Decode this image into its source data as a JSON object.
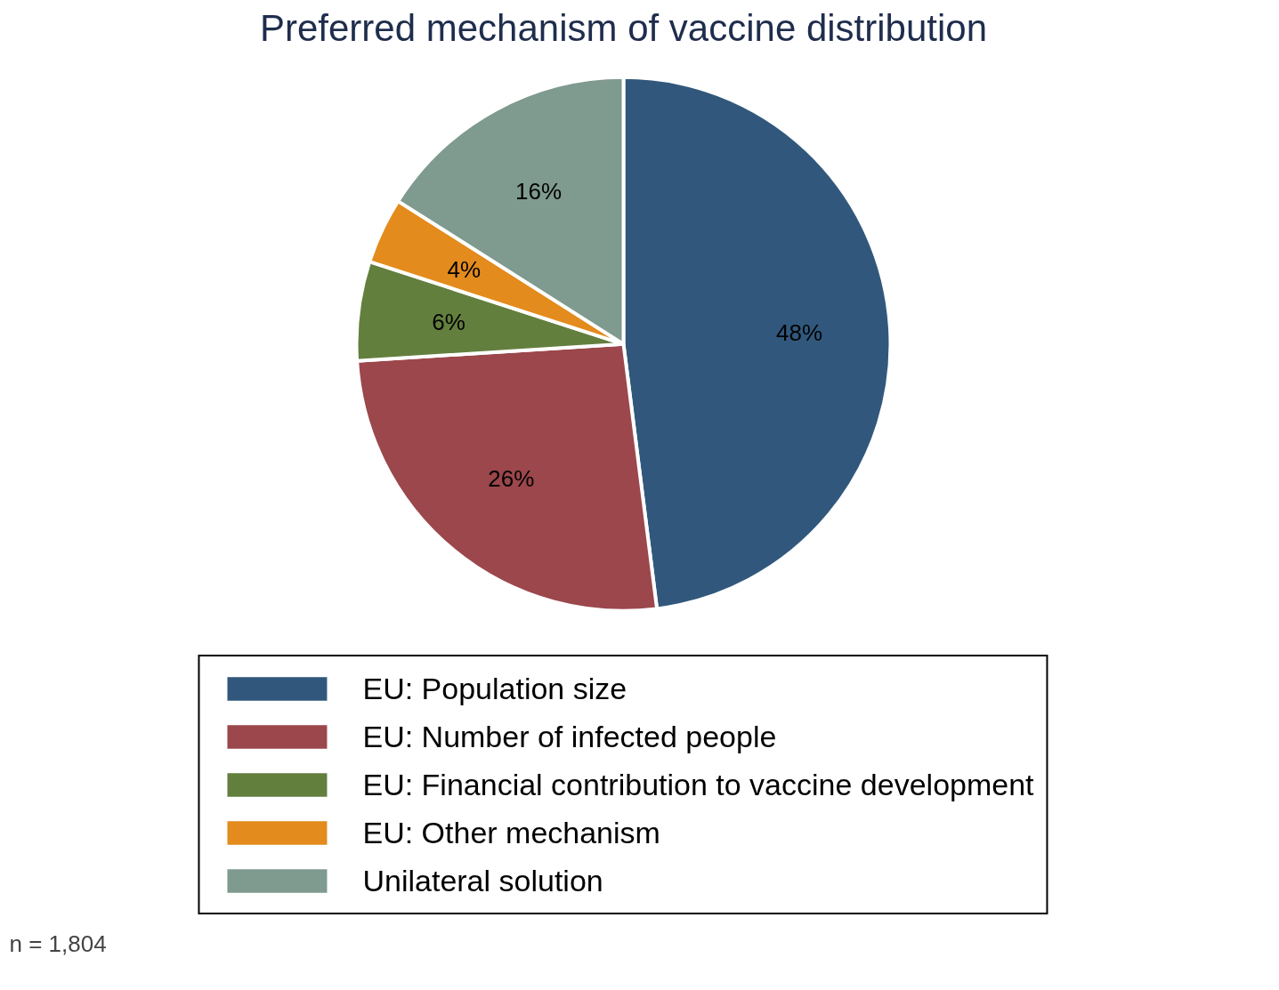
{
  "chart_data": {
    "type": "pie",
    "title": "Preferred mechanism of vaccine distribution",
    "categories": [
      "EU: Population size",
      "EU: Number of infected people",
      "EU: Financial contribution to vaccine development",
      "EU: Other mechanism",
      "Unilateral solution"
    ],
    "values": [
      48,
      26,
      6,
      4,
      16
    ],
    "colors": [
      "#31587c",
      "#9b474c",
      "#637f3e",
      "#e38b1c",
      "#7f9a8f"
    ],
    "value_labels": [
      "48%",
      "26%",
      "6%",
      "4%",
      "16%"
    ],
    "legend": "bottom",
    "annotations": [
      "n = 1,804"
    ]
  }
}
